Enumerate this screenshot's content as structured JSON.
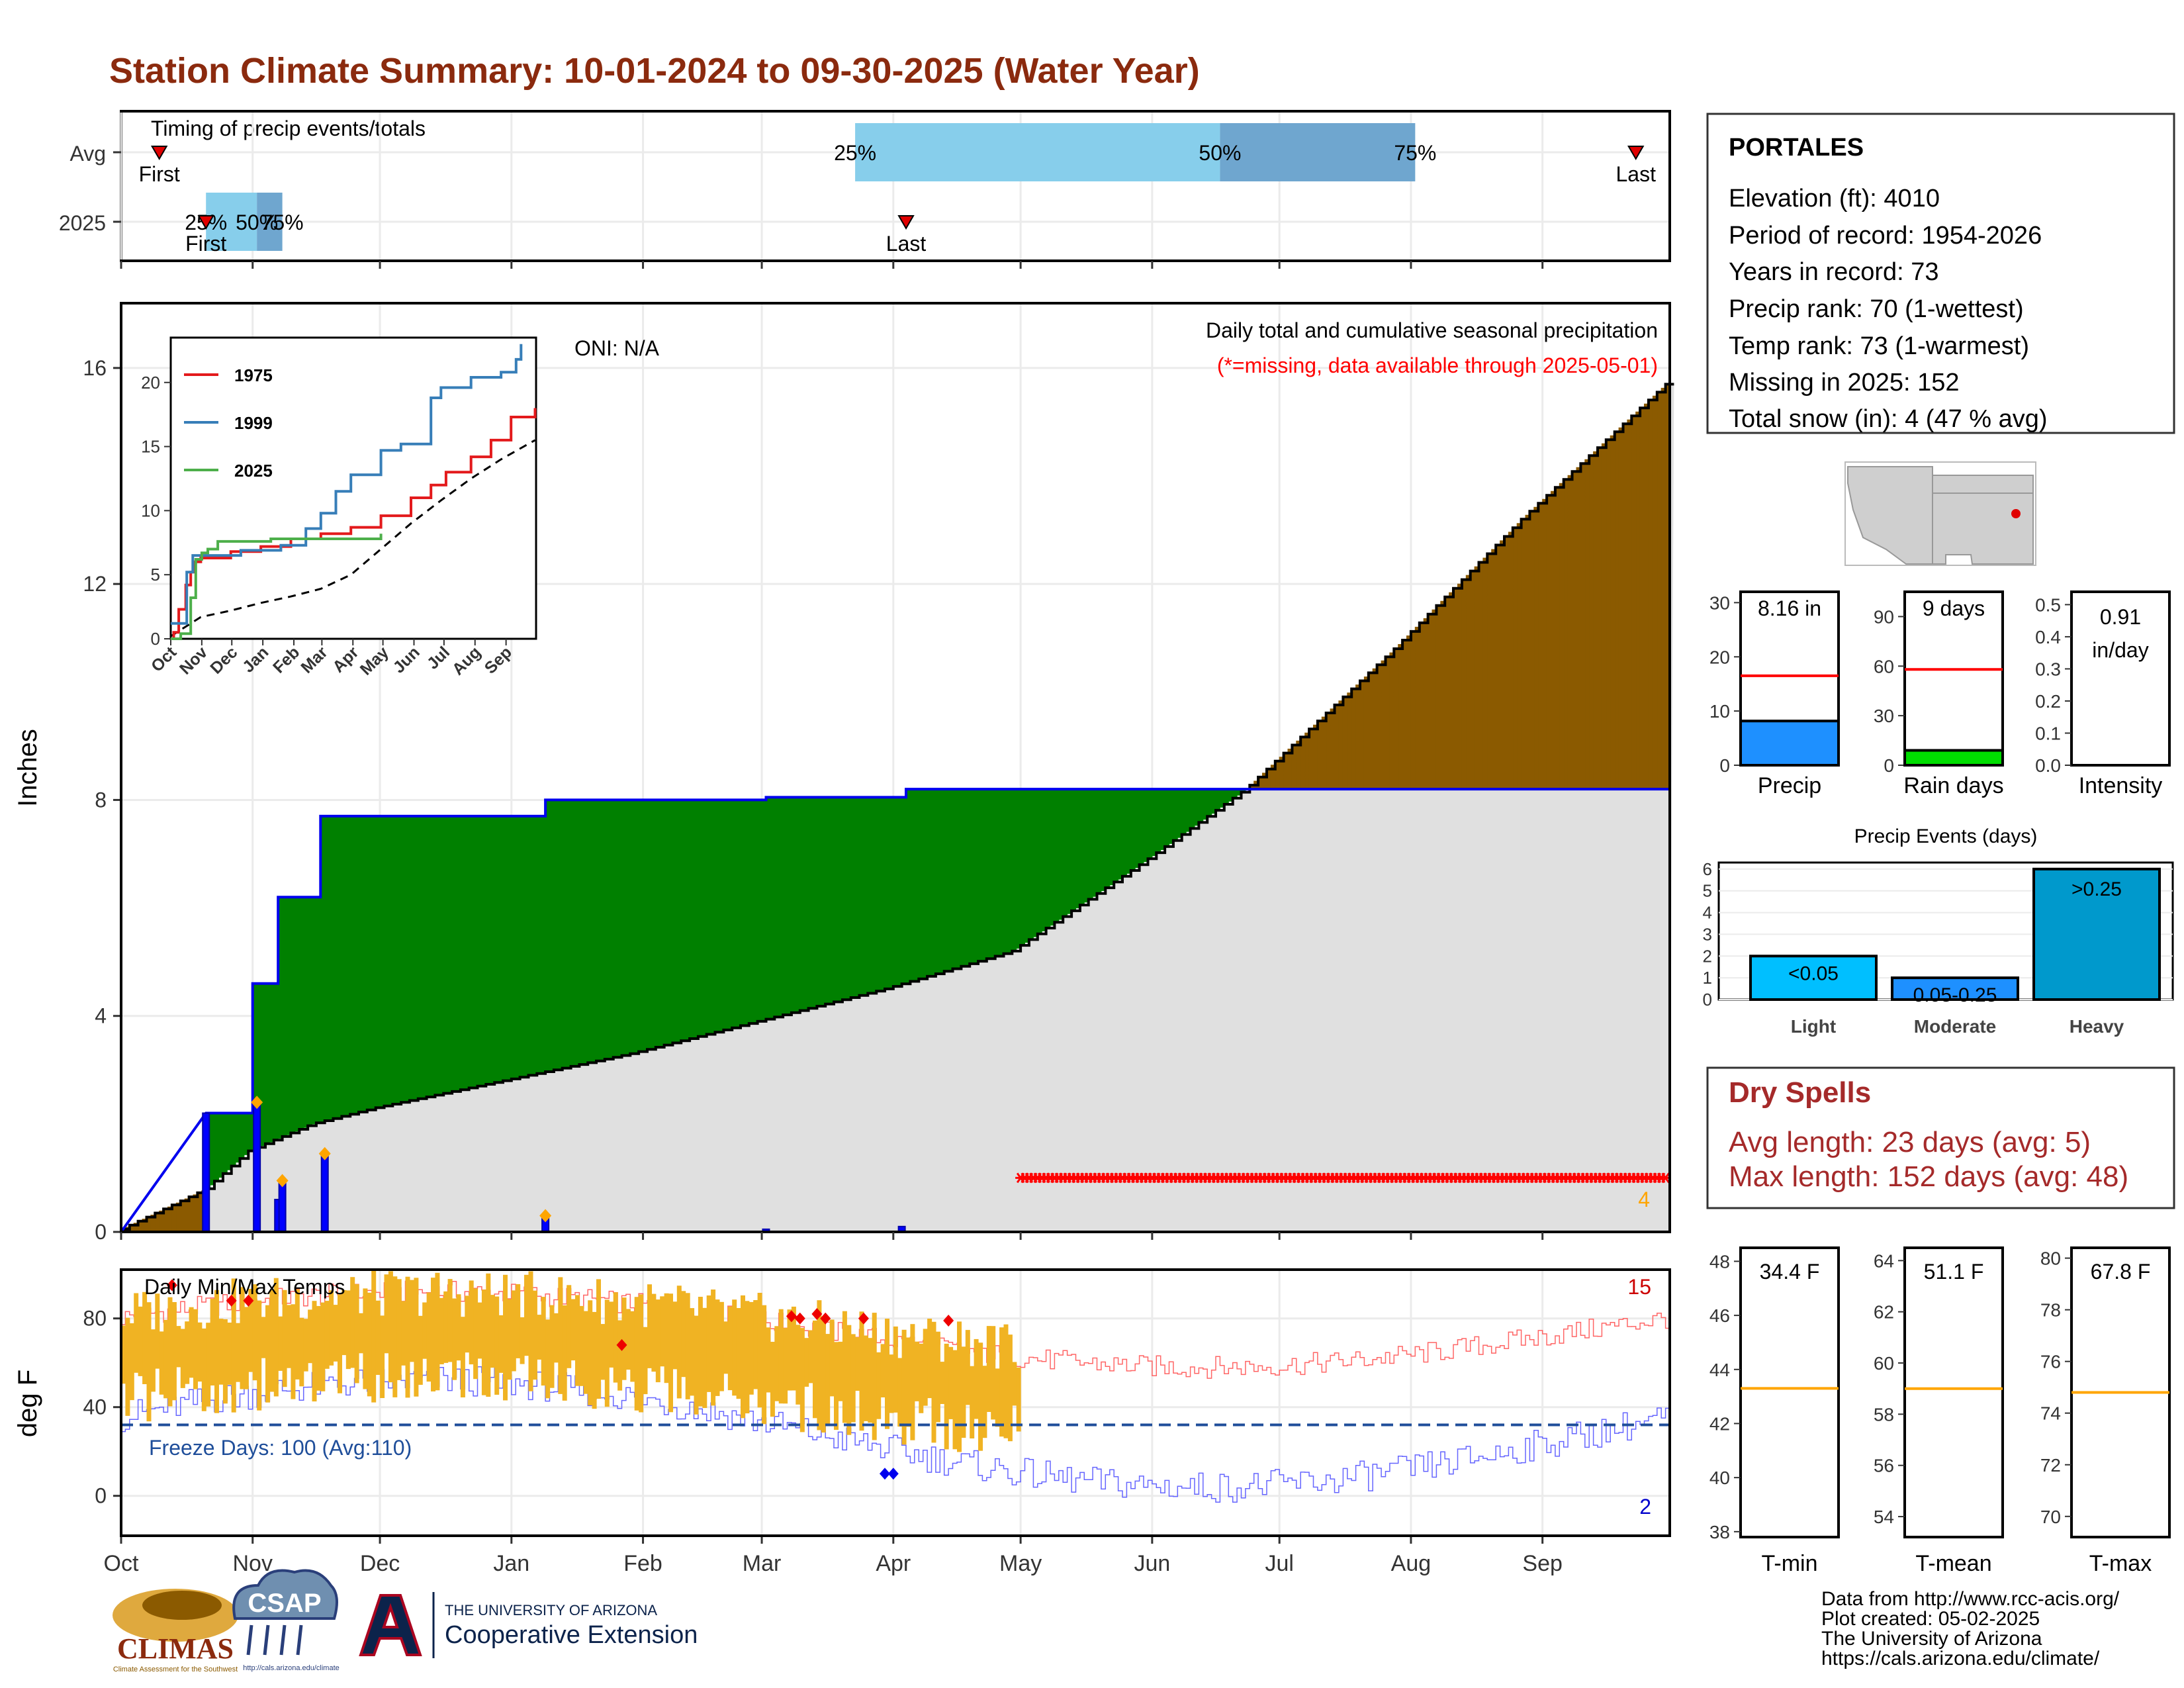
{
  "title": "Station Climate Summary: 10-01-2024 to 09-30-2025 (Water Year)",
  "colors": {
    "title": "#8b2a0e",
    "green": "#008000",
    "brown": "#8b5a00",
    "climo": "#e0e0e0",
    "blue": "#0000ff",
    "orange": "#f0b323",
    "red": "#ff0000",
    "lightblue": "#87ceeb",
    "midblue": "#6fa6cf",
    "dryspell": "#a52a2a"
  },
  "timing": {
    "label": "Timing of precip events/totals",
    "rows": [
      "Avg",
      "2025"
    ],
    "avg": {
      "first": "First",
      "last": "Last",
      "q25": "25%",
      "q50": "50%",
      "q75": "75%",
      "first_day": 9,
      "q25_day": 173,
      "q50_day": 259,
      "q75_day": 305,
      "last_day": 357
    },
    "y2025": {
      "first": "First",
      "last": "Last",
      "q25": "25%",
      "q50": "50%",
      "q75": "75%",
      "first_day": 20,
      "q25_day": 20,
      "q50_day": 32,
      "q75_day": 38,
      "last_day": 185
    }
  },
  "station": {
    "name": "PORTALES",
    "lines": [
      "Elevation (ft): 4010",
      "Period of record: 1954-2026",
      "Years in record: 73",
      "Precip rank: 70 (1-wettest)",
      "Temp rank: 73 (1-warmest)",
      "Missing in 2025: 152",
      "Total snow (in): 4 (47 % avg)"
    ]
  },
  "precip_panel": {
    "ylabel": "Inches",
    "oni": "ONI: N/A",
    "caption": "Daily total and cumulative seasonal precipitation",
    "missing_note": "(*=missing, data available through 2025-05-01)",
    "snow_count": "4",
    "yticks": [
      0,
      4,
      8,
      12,
      16
    ],
    "ylim": [
      0,
      17.2
    ],
    "obs_steps": [
      [
        0,
        0
      ],
      [
        20,
        2.2
      ],
      [
        31,
        2.2
      ],
      [
        31,
        4.6
      ],
      [
        37,
        4.6
      ],
      [
        37,
        6.2
      ],
      [
        47,
        6.2
      ],
      [
        47,
        7.7
      ],
      [
        100,
        7.7
      ],
      [
        100,
        8.0
      ],
      [
        152,
        8.0
      ],
      [
        152,
        8.05
      ],
      [
        185,
        8.05
      ],
      [
        185,
        8.2
      ],
      [
        365,
        8.2
      ]
    ],
    "climo_points": [
      [
        0,
        0.05
      ],
      [
        20,
        0.8
      ],
      [
        30,
        1.5
      ],
      [
        45,
        2.0
      ],
      [
        60,
        2.3
      ],
      [
        90,
        2.8
      ],
      [
        120,
        3.3
      ],
      [
        150,
        3.9
      ],
      [
        180,
        4.5
      ],
      [
        210,
        5.2
      ],
      [
        240,
        6.8
      ],
      [
        265,
        8.2
      ],
      [
        300,
        10.8
      ],
      [
        330,
        13.2
      ],
      [
        364,
        15.7
      ]
    ],
    "daily_bars": [
      [
        20,
        2.2
      ],
      [
        32,
        2.4
      ],
      [
        37,
        0.6
      ],
      [
        38,
        0.95
      ],
      [
        48,
        1.45
      ],
      [
        100,
        0.3
      ],
      [
        152,
        0.05
      ],
      [
        184,
        0.1
      ]
    ],
    "snow_markers": [
      [
        32,
        2.4
      ],
      [
        38,
        0.95
      ],
      [
        48,
        1.45
      ],
      [
        100,
        0.3
      ]
    ],
    "missing_start": 212,
    "missing_end": 364,
    "missing_y": 1.0
  },
  "inset": {
    "series": [
      {
        "name": "1975",
        "color": "#e31a1c",
        "points": [
          [
            0,
            0
          ],
          [
            3,
            0.5
          ],
          [
            8,
            2.3
          ],
          [
            15,
            4.2
          ],
          [
            20,
            5.2
          ],
          [
            23,
            6.0
          ],
          [
            30,
            6.3
          ],
          [
            60,
            6.8
          ],
          [
            90,
            7.2
          ],
          [
            120,
            7.8
          ],
          [
            150,
            8.2
          ],
          [
            180,
            8.7
          ],
          [
            210,
            9.6
          ],
          [
            240,
            11.0
          ],
          [
            260,
            12.0
          ],
          [
            275,
            13.0
          ],
          [
            300,
            14.2
          ],
          [
            320,
            15.5
          ],
          [
            340,
            17.3
          ],
          [
            364,
            18.0
          ]
        ]
      },
      {
        "name": "1999",
        "color": "#377eb8",
        "points": [
          [
            0,
            1.2
          ],
          [
            10,
            1.2
          ],
          [
            16,
            5.2
          ],
          [
            22,
            6.5
          ],
          [
            40,
            6.5
          ],
          [
            70,
            6.9
          ],
          [
            110,
            7.3
          ],
          [
            135,
            8.6
          ],
          [
            150,
            9.8
          ],
          [
            165,
            11.5
          ],
          [
            180,
            12.8
          ],
          [
            210,
            14.7
          ],
          [
            230,
            15.2
          ],
          [
            260,
            18.8
          ],
          [
            270,
            19.6
          ],
          [
            300,
            20.4
          ],
          [
            330,
            20.8
          ],
          [
            345,
            21.8
          ],
          [
            350,
            23.0
          ]
        ]
      },
      {
        "name": "2025",
        "color": "#4daf4a",
        "points": [
          [
            0,
            0
          ],
          [
            10,
            0.4
          ],
          [
            20,
            3.2
          ],
          [
            25,
            6.2
          ],
          [
            31,
            6.7
          ],
          [
            37,
            7.0
          ],
          [
            47,
            7.6
          ],
          [
            100,
            7.8
          ],
          [
            210,
            8.2
          ]
        ]
      }
    ],
    "climo": [
      [
        0,
        0.2
      ],
      [
        30,
        1.7
      ],
      [
        60,
        2.2
      ],
      [
        90,
        2.8
      ],
      [
        120,
        3.3
      ],
      [
        150,
        3.9
      ],
      [
        180,
        5.0
      ],
      [
        210,
        7.0
      ],
      [
        240,
        9.0
      ],
      [
        270,
        10.8
      ],
      [
        300,
        12.5
      ],
      [
        330,
        14.0
      ],
      [
        364,
        15.5
      ]
    ],
    "yticks": [
      0,
      5,
      10,
      15,
      20
    ],
    "ylim": [
      0,
      23.5
    ],
    "xticks": [
      "Oct",
      "Nov",
      "Dec",
      "Jan",
      "Feb",
      "Mar",
      "Apr",
      "May",
      "Jun",
      "Jul",
      "Aug",
      "Sep"
    ]
  },
  "months": [
    "Oct",
    "Nov",
    "Dec",
    "Jan",
    "Feb",
    "Mar",
    "Apr",
    "May",
    "Jun",
    "Jul",
    "Aug",
    "Sep"
  ],
  "bars_precip": {
    "value": "8.16 in",
    "label": "Precip",
    "yticks": [
      0,
      10,
      20,
      30
    ],
    "ylim": [
      0,
      32
    ],
    "obs": 8.16,
    "avg": 16.5
  },
  "bars_raindays": {
    "value": "9 days",
    "label": "Rain days",
    "yticks": [
      0,
      30,
      60,
      90
    ],
    "ylim": [
      0,
      105
    ],
    "obs": 9,
    "avg": 58
  },
  "bars_intensity": {
    "value1": "0.91",
    "value2": "in/day",
    "label": "Intensity",
    "yticks": [
      "0.0",
      "0.1",
      "0.2",
      "0.3",
      "0.4",
      "0.5"
    ],
    "ylim": [
      0,
      0.54
    ]
  },
  "events": {
    "title": "Precip Events (days)",
    "categories": [
      "Light",
      "Moderate",
      "Heavy"
    ],
    "bar_labels": [
      "<0.05",
      "0.05-0.25",
      ">0.25"
    ],
    "values": [
      2,
      1,
      6
    ],
    "colors": [
      "#00bfff",
      "#1e90ff",
      "#0099cc"
    ],
    "yticks": [
      0,
      1,
      2,
      3,
      4,
      5,
      6
    ],
    "ylim": [
      0,
      6.3
    ]
  },
  "dry_spells": {
    "title": "Dry Spells",
    "avg": "Avg length: 23 days (avg: 5)",
    "max": "Max length: 152 days (avg: 48)"
  },
  "temp_panel": {
    "ylabel": "deg F",
    "label": "Daily Min/Max Temps",
    "freeze": "Freeze Days: 100 (Avg:110)",
    "count_hot": "15",
    "count_cold": "2",
    "yticks": [
      0,
      40,
      80
    ],
    "ylim": [
      -18,
      102
    ],
    "freeze_line": 32,
    "obs_end": 212
  },
  "temp_bars": [
    {
      "value": "34.4 F",
      "label": "T-min",
      "yticks": [
        38,
        40,
        42,
        44,
        46,
        48
      ],
      "ylim": [
        37.8,
        48.5
      ],
      "avg": 43.3
    },
    {
      "value": "51.1 F",
      "label": "T-mean",
      "yticks": [
        54,
        56,
        58,
        60,
        62,
        64
      ],
      "ylim": [
        53.2,
        64.5
      ],
      "avg": 59.0
    },
    {
      "value": "67.8 F",
      "label": "T-max",
      "yticks": [
        70,
        72,
        74,
        76,
        78,
        80
      ],
      "ylim": [
        69.2,
        80.4
      ],
      "avg": 74.8
    }
  ],
  "footer": {
    "lines": [
      "Data from http://www.rcc-acis.org/",
      "Plot created: 05-02-2025",
      "The University of Arizona",
      "https://cals.arizona.edu/climate/"
    ],
    "climas": "CLIMAS",
    "climas_sub": "Climate Assessment for the Southwest",
    "csap": "CSAP",
    "csap_url": "http://cals.arizona.edu/climate",
    "ua_top": "THE UNIVERSITY OF ARIZONA",
    "ua_bottom": "Cooperative Extension"
  }
}
